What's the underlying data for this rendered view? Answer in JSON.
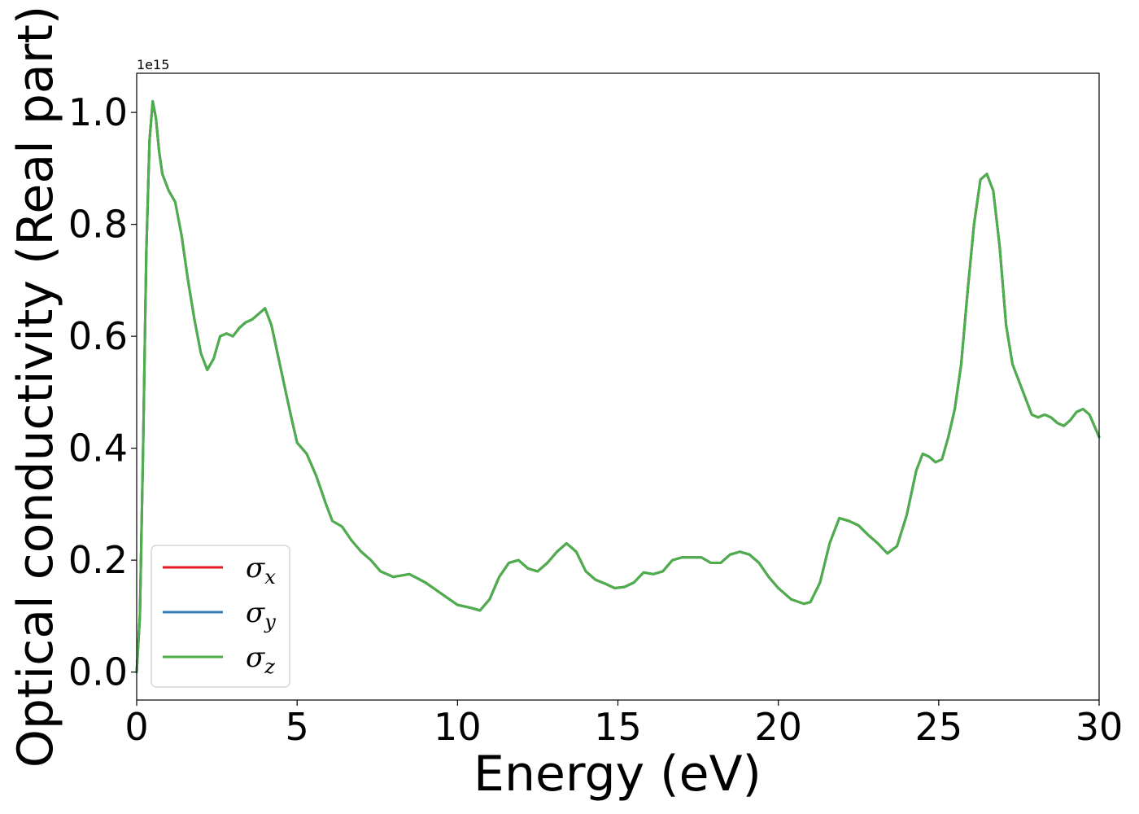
{
  "chart_data": {
    "type": "line",
    "xlabel": "Energy (eV)",
    "ylabel": "Optical conductivity (Real part)",
    "y_offset_text": "1e15",
    "xlim": [
      0,
      30
    ],
    "ylim": [
      -0.05,
      1.07
    ],
    "y_scale_multiplier": 1000000000000000.0,
    "xticks": [
      0,
      5,
      10,
      15,
      20,
      25,
      30
    ],
    "xtick_labels": [
      "0",
      "5",
      "10",
      "15",
      "20",
      "25",
      "30"
    ],
    "yticks": [
      0.0,
      0.2,
      0.4,
      0.6,
      0.8,
      1.0
    ],
    "ytick_labels": [
      "0.0",
      "0.2",
      "0.4",
      "0.6",
      "0.8",
      "1.0"
    ],
    "grid": false,
    "legend_position": "lower-left",
    "x": [
      0,
      0.1,
      0.2,
      0.3,
      0.4,
      0.5,
      0.6,
      0.7,
      0.8,
      1.0,
      1.2,
      1.4,
      1.6,
      1.8,
      2.0,
      2.2,
      2.4,
      2.6,
      2.8,
      3.0,
      3.2,
      3.4,
      3.6,
      3.8,
      4.0,
      4.2,
      4.5,
      4.8,
      5.0,
      5.3,
      5.6,
      5.9,
      6.1,
      6.4,
      6.7,
      7.0,
      7.3,
      7.6,
      8.0,
      8.5,
      9.0,
      9.5,
      10.0,
      10.4,
      10.7,
      11.0,
      11.3,
      11.6,
      11.9,
      12.2,
      12.5,
      12.8,
      13.1,
      13.4,
      13.7,
      14.0,
      14.3,
      14.6,
      14.9,
      15.2,
      15.5,
      15.8,
      16.1,
      16.4,
      16.7,
      17.0,
      17.3,
      17.6,
      17.9,
      18.2,
      18.5,
      18.8,
      19.1,
      19.4,
      19.7,
      20.0,
      20.4,
      20.8,
      21.0,
      21.3,
      21.6,
      21.9,
      22.2,
      22.5,
      22.8,
      23.1,
      23.4,
      23.7,
      24.0,
      24.3,
      24.5,
      24.7,
      24.9,
      25.1,
      25.3,
      25.5,
      25.7,
      25.9,
      26.1,
      26.3,
      26.5,
      26.7,
      26.9,
      27.1,
      27.3,
      27.5,
      27.7,
      27.9,
      28.1,
      28.3,
      28.5,
      28.7,
      28.9,
      29.1,
      29.3,
      29.5,
      29.7,
      30.0
    ],
    "series": [
      {
        "name": "σx",
        "symbol": "σ",
        "subscript": "x",
        "color": "#e41a1c",
        "values": [
          0.0,
          0.1,
          0.4,
          0.75,
          0.95,
          1.02,
          0.99,
          0.93,
          0.89,
          0.86,
          0.84,
          0.78,
          0.7,
          0.63,
          0.57,
          0.54,
          0.56,
          0.6,
          0.605,
          0.6,
          0.615,
          0.625,
          0.63,
          0.64,
          0.65,
          0.62,
          0.54,
          0.46,
          0.41,
          0.39,
          0.35,
          0.3,
          0.27,
          0.26,
          0.235,
          0.215,
          0.2,
          0.18,
          0.17,
          0.175,
          0.16,
          0.14,
          0.12,
          0.115,
          0.11,
          0.13,
          0.17,
          0.195,
          0.2,
          0.185,
          0.18,
          0.195,
          0.215,
          0.23,
          0.215,
          0.18,
          0.165,
          0.158,
          0.15,
          0.152,
          0.16,
          0.178,
          0.175,
          0.18,
          0.2,
          0.205,
          0.205,
          0.205,
          0.195,
          0.195,
          0.21,
          0.215,
          0.21,
          0.195,
          0.17,
          0.15,
          0.13,
          0.122,
          0.125,
          0.16,
          0.23,
          0.275,
          0.27,
          0.262,
          0.245,
          0.23,
          0.212,
          0.225,
          0.28,
          0.36,
          0.39,
          0.385,
          0.375,
          0.38,
          0.42,
          0.47,
          0.55,
          0.68,
          0.8,
          0.88,
          0.89,
          0.86,
          0.76,
          0.62,
          0.55,
          0.52,
          0.49,
          0.46,
          0.455,
          0.46,
          0.455,
          0.445,
          0.44,
          0.45,
          0.465,
          0.47,
          0.46,
          0.42
        ]
      },
      {
        "name": "σy",
        "symbol": "σ",
        "subscript": "y",
        "color": "#377eb8",
        "values": [
          0.0,
          0.1,
          0.4,
          0.75,
          0.95,
          1.02,
          0.99,
          0.93,
          0.89,
          0.86,
          0.84,
          0.78,
          0.7,
          0.63,
          0.57,
          0.54,
          0.56,
          0.6,
          0.605,
          0.6,
          0.615,
          0.625,
          0.63,
          0.64,
          0.65,
          0.62,
          0.54,
          0.46,
          0.41,
          0.39,
          0.35,
          0.3,
          0.27,
          0.26,
          0.235,
          0.215,
          0.2,
          0.18,
          0.17,
          0.175,
          0.16,
          0.14,
          0.12,
          0.115,
          0.11,
          0.13,
          0.17,
          0.195,
          0.2,
          0.185,
          0.18,
          0.195,
          0.215,
          0.23,
          0.215,
          0.18,
          0.165,
          0.158,
          0.15,
          0.152,
          0.16,
          0.178,
          0.175,
          0.18,
          0.2,
          0.205,
          0.205,
          0.205,
          0.195,
          0.195,
          0.21,
          0.215,
          0.21,
          0.195,
          0.17,
          0.15,
          0.13,
          0.122,
          0.125,
          0.16,
          0.23,
          0.275,
          0.27,
          0.262,
          0.245,
          0.23,
          0.212,
          0.225,
          0.28,
          0.36,
          0.39,
          0.385,
          0.375,
          0.38,
          0.42,
          0.47,
          0.55,
          0.68,
          0.8,
          0.88,
          0.89,
          0.86,
          0.76,
          0.62,
          0.55,
          0.52,
          0.49,
          0.46,
          0.455,
          0.46,
          0.455,
          0.445,
          0.44,
          0.45,
          0.465,
          0.47,
          0.46,
          0.42
        ]
      },
      {
        "name": "σz",
        "symbol": "σ",
        "subscript": "z",
        "color": "#4daf4a",
        "values": [
          0.0,
          0.1,
          0.4,
          0.75,
          0.95,
          1.02,
          0.99,
          0.93,
          0.89,
          0.86,
          0.84,
          0.78,
          0.7,
          0.63,
          0.57,
          0.54,
          0.56,
          0.6,
          0.605,
          0.6,
          0.615,
          0.625,
          0.63,
          0.64,
          0.65,
          0.62,
          0.54,
          0.46,
          0.41,
          0.39,
          0.35,
          0.3,
          0.27,
          0.26,
          0.235,
          0.215,
          0.2,
          0.18,
          0.17,
          0.175,
          0.16,
          0.14,
          0.12,
          0.115,
          0.11,
          0.13,
          0.17,
          0.195,
          0.2,
          0.185,
          0.18,
          0.195,
          0.215,
          0.23,
          0.215,
          0.18,
          0.165,
          0.158,
          0.15,
          0.152,
          0.16,
          0.178,
          0.175,
          0.18,
          0.2,
          0.205,
          0.205,
          0.205,
          0.195,
          0.195,
          0.21,
          0.215,
          0.21,
          0.195,
          0.17,
          0.15,
          0.13,
          0.122,
          0.125,
          0.16,
          0.23,
          0.275,
          0.27,
          0.262,
          0.245,
          0.23,
          0.212,
          0.225,
          0.28,
          0.36,
          0.39,
          0.385,
          0.375,
          0.38,
          0.42,
          0.47,
          0.55,
          0.68,
          0.8,
          0.88,
          0.89,
          0.86,
          0.76,
          0.62,
          0.55,
          0.52,
          0.49,
          0.46,
          0.455,
          0.46,
          0.455,
          0.445,
          0.44,
          0.45,
          0.465,
          0.47,
          0.46,
          0.42
        ]
      }
    ]
  }
}
